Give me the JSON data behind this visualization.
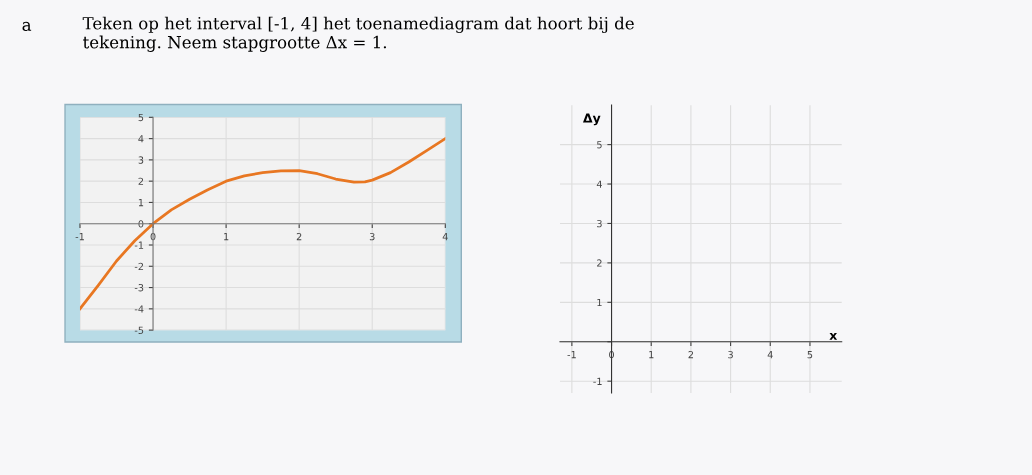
{
  "chart_data": [
    {
      "type": "line",
      "annotations": [
        "a",
        "Teken op het interval [-1, 4] het toenamediagram dat hoort bij de tekening. Neem stapgrootte Δx = 1."
      ],
      "xlim": [
        -1,
        4
      ],
      "ylim": [
        -5,
        5
      ],
      "xticks": [
        -1,
        0,
        1,
        2,
        3,
        4
      ],
      "yticks": [
        -5,
        -4,
        -3,
        -2,
        -1,
        0,
        1,
        2,
        3,
        4,
        5
      ],
      "grid": true,
      "series": [
        {
          "color": "#e87722",
          "x": [
            -1,
            -0.75,
            -0.5,
            -0.25,
            0,
            0.25,
            0.5,
            0.75,
            1,
            1.25,
            1.5,
            1.75,
            2,
            2.25,
            2.5,
            2.75,
            2.9,
            3,
            3.25,
            3.5,
            3.75,
            4
          ],
          "values": [
            -4,
            -2.9,
            -1.75,
            -0.8,
            0,
            0.65,
            1.15,
            1.6,
            2,
            2.25,
            2.4,
            2.48,
            2.5,
            2.35,
            2.1,
            1.95,
            1.97,
            2.05,
            2.4,
            2.9,
            3.45,
            4
          ]
        }
      ]
    },
    {
      "type": "line",
      "xlabel": "x",
      "ylabel": "Δy",
      "xlim": [
        -1.3,
        5.8
      ],
      "ylim": [
        -1.3,
        6
      ],
      "xticks": [
        -1,
        0,
        1,
        2,
        3,
        4,
        5
      ],
      "yticks": [
        -1,
        {
          "value": 0,
          "label": null
        },
        1,
        2,
        3,
        4,
        5
      ],
      "grid": true
    }
  ]
}
